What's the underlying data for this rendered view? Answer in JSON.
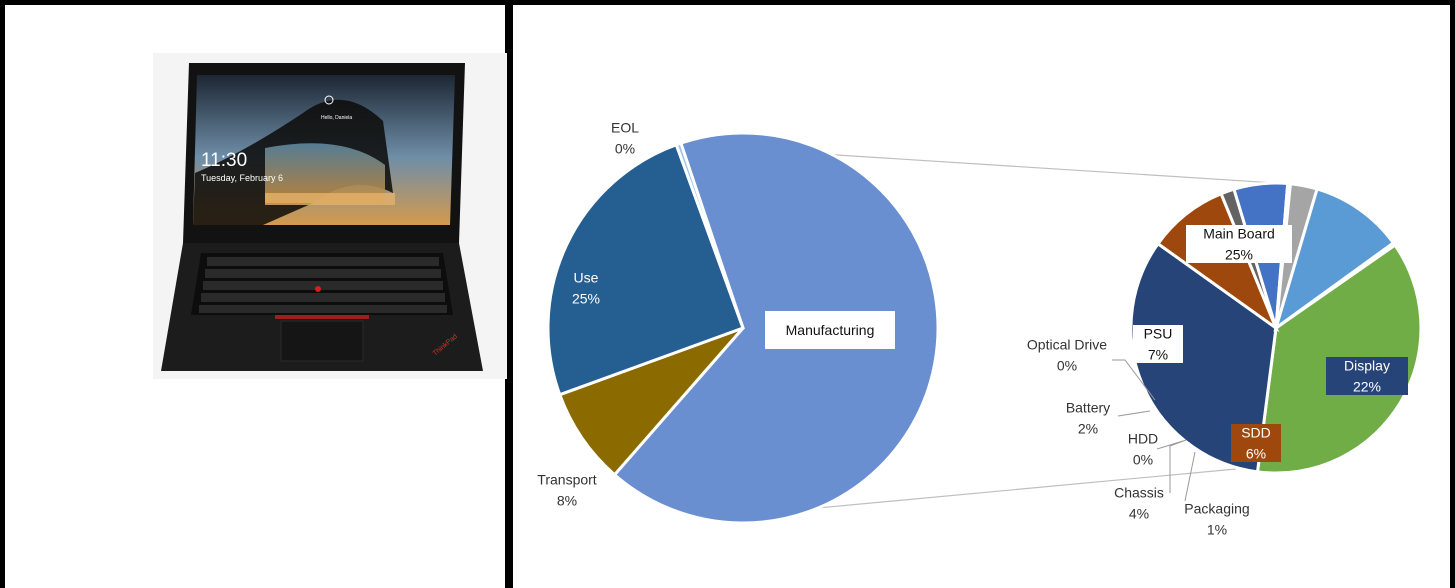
{
  "chart_data": [
    {
      "type": "pie",
      "slices": [
        {
          "label": "Manufacturing",
          "value": 67,
          "display": "",
          "color": "#6a8fd0"
        },
        {
          "label": "Transport",
          "value": 8,
          "display": "8%",
          "color": "#8b6a00"
        },
        {
          "label": "Use",
          "value": 25,
          "display": "25%",
          "color": "#255e91"
        },
        {
          "label": "EOL",
          "value": 0,
          "display": "0%",
          "color": "#9dc3e6"
        }
      ]
    },
    {
      "type": "pie",
      "slices": [
        {
          "label": "Main Board",
          "value": 25,
          "display": "25%",
          "color": "#70ad47"
        },
        {
          "label": "Display",
          "value": 22,
          "display": "22%",
          "color": "#264478"
        },
        {
          "label": "SDD",
          "value": 6,
          "display": "6%",
          "color": "#9e480e"
        },
        {
          "label": "Packaging",
          "value": 1,
          "display": "1%",
          "color": "#636363"
        },
        {
          "label": "Chassis",
          "value": 4,
          "display": "4%",
          "color": "#4472c4"
        },
        {
          "label": "HDD",
          "value": 0,
          "display": "0%",
          "color": "#ffc000"
        },
        {
          "label": "Battery",
          "value": 2,
          "display": "2%",
          "color": "#a5a5a5"
        },
        {
          "label": "PSU",
          "value": 7,
          "display": "7%",
          "color": "#5b9bd5"
        },
        {
          "label": "Optical Drive",
          "value": 0,
          "display": "0%",
          "color": "#c9c9c9"
        }
      ]
    }
  ],
  "photo": {
    "clock": "11:30",
    "date": "Tuesday, February 6",
    "greeting": "Hello, Daniela",
    "brand": "ThinkPad"
  }
}
